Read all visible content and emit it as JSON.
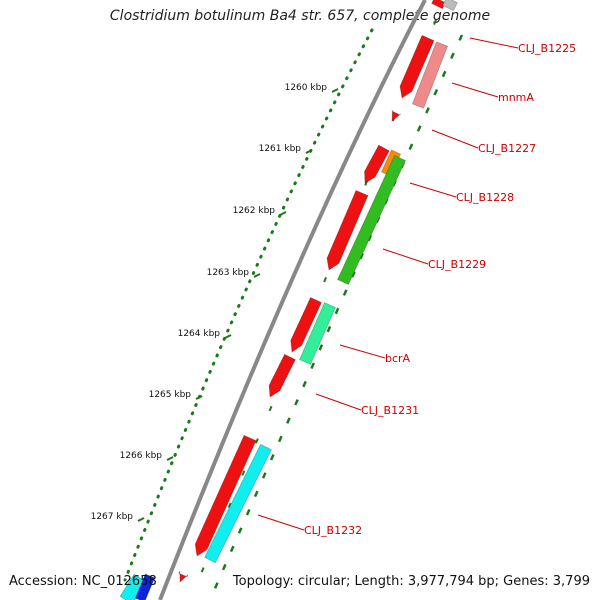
{
  "title": "Clostridium botulinum Ba4 str. 657, complete genome",
  "footer": {
    "accession": "Accession: NC_012658",
    "topology": "Topology: circular; Length: 3,977,794 bp; Genes: 3,799"
  },
  "scale_labels": [
    "1260 kbp",
    "1261 kbp",
    "1262 kbp",
    "1263 kbp",
    "1264 kbp",
    "1265 kbp",
    "1266 kbp",
    "1267 kbp"
  ],
  "colors": {
    "cds": "#ee1111",
    "cds_light": "#f08a8a",
    "green": "#33bb22",
    "orange": "#ff8800",
    "aqua_green": "#33ee99",
    "cyan": "#11eeee",
    "blue": "#1122dd",
    "label": "#cc0000",
    "backbone": "#888888",
    "tick": "#1a7a1a"
  },
  "gene_labels": [
    "CLJ_B1225",
    "mnmA",
    "CLJ_B1227",
    "CLJ_B1228",
    "CLJ_B1229",
    "bcrA",
    "CLJ_B1231",
    "CLJ_B1232"
  ]
}
